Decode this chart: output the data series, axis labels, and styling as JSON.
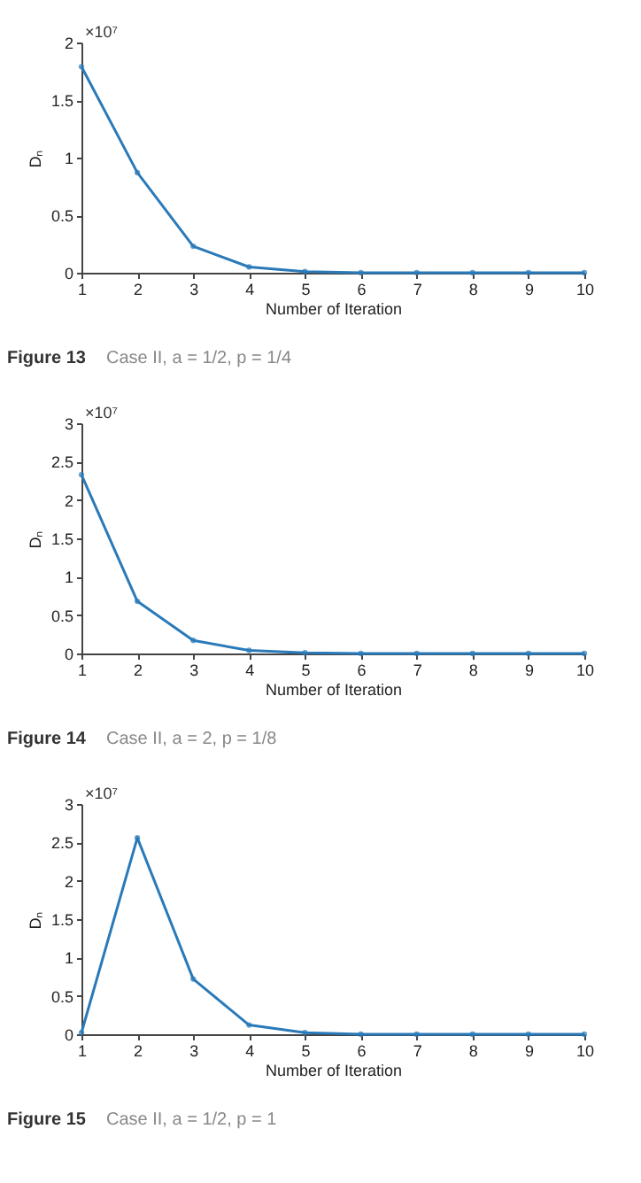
{
  "chart_data": [
    {
      "type": "line",
      "x": [
        1,
        2,
        3,
        4,
        5,
        6,
        7,
        8,
        9,
        10
      ],
      "values": [
        1.79,
        0.87,
        0.23,
        0.05,
        0.01,
        0,
        0,
        0,
        0,
        0
      ],
      "color": "#2a7ab9",
      "xlim": [
        1,
        10
      ],
      "xticks": [
        1,
        2,
        3,
        4,
        5,
        6,
        7,
        8,
        9,
        10
      ],
      "ylim": [
        0,
        2
      ],
      "yticks": [
        0,
        0.5,
        1,
        1.5,
        2
      ],
      "xlabel": "Number of Iteration",
      "ylabel": "Dₙ",
      "marker": "circle",
      "grid": false,
      "annotations": [
        "×10⁷",
        "Figure 13",
        "Case II, a = 1/2, p = 1/4"
      ]
    },
    {
      "type": "line",
      "x": [
        1,
        2,
        3,
        4,
        5,
        6,
        7,
        8,
        9,
        10
      ],
      "values": [
        2.33,
        0.68,
        0.17,
        0.04,
        0.01,
        0,
        0,
        0,
        0,
        0
      ],
      "color": "#2a7ab9",
      "xlim": [
        1,
        10
      ],
      "xticks": [
        1,
        2,
        3,
        4,
        5,
        6,
        7,
        8,
        9,
        10
      ],
      "ylim": [
        0,
        3
      ],
      "yticks": [
        0,
        0.5,
        1,
        1.5,
        2,
        2.5,
        3
      ],
      "xlabel": "Number of Iteration",
      "ylabel": "Dₙ",
      "marker": "circle",
      "grid": false,
      "annotations": [
        "×10⁷",
        "Figure 14",
        "Case II, a = 2, p = 1/8"
      ]
    },
    {
      "type": "line",
      "x": [
        1,
        2,
        3,
        4,
        5,
        6,
        7,
        8,
        9,
        10
      ],
      "values": [
        0.02,
        2.56,
        0.72,
        0.12,
        0.02,
        0,
        0,
        0,
        0,
        0
      ],
      "color": "#2a7ab9",
      "xlim": [
        1,
        10
      ],
      "xticks": [
        1,
        2,
        3,
        4,
        5,
        6,
        7,
        8,
        9,
        10
      ],
      "ylim": [
        0,
        3
      ],
      "yticks": [
        0,
        0.5,
        1,
        1.5,
        2,
        2.5,
        3
      ],
      "xlabel": "Number of Iteration",
      "ylabel": "Dₙ",
      "marker": "circle",
      "grid": false,
      "annotations": [
        "×10⁷",
        "Figure 15",
        "Case II, a = 1/2, p = 1"
      ]
    }
  ]
}
